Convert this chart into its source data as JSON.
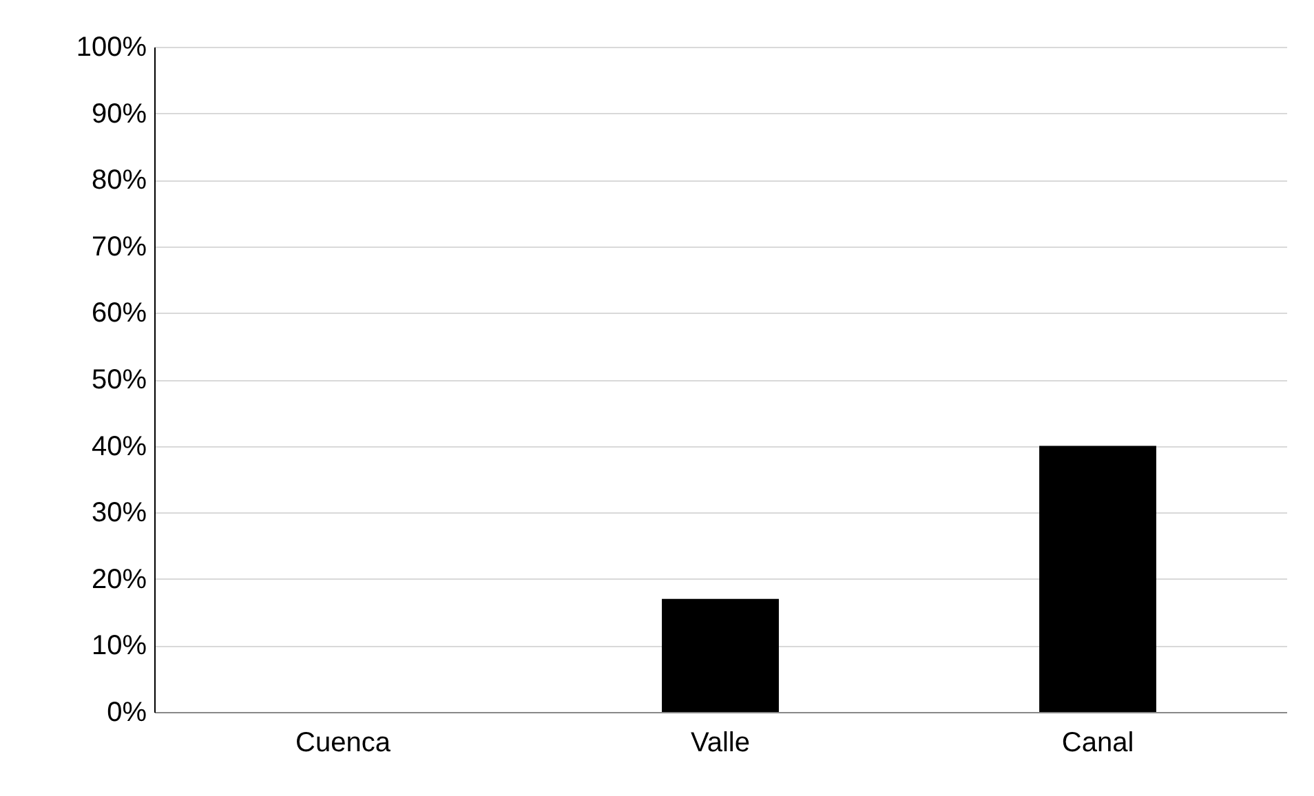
{
  "chart_data": {
    "type": "bar",
    "categories": [
      "Cuenca",
      "Valle",
      "Canal"
    ],
    "values": [
      0,
      17,
      40
    ],
    "color": "#000000",
    "ylim": [
      0,
      100
    ],
    "yticks": [
      {
        "value": 0,
        "label": "0%"
      },
      {
        "value": 10,
        "label": "10%"
      },
      {
        "value": 20,
        "label": "20%"
      },
      {
        "value": 30,
        "label": "30%"
      },
      {
        "value": 40,
        "label": "40%"
      },
      {
        "value": 50,
        "label": "50%"
      },
      {
        "value": 60,
        "label": "60%"
      },
      {
        "value": 70,
        "label": "70%"
      },
      {
        "value": 80,
        "label": "80%"
      },
      {
        "value": 90,
        "label": "90%"
      },
      {
        "value": 100,
        "label": "100%"
      }
    ],
    "grid": "y"
  }
}
